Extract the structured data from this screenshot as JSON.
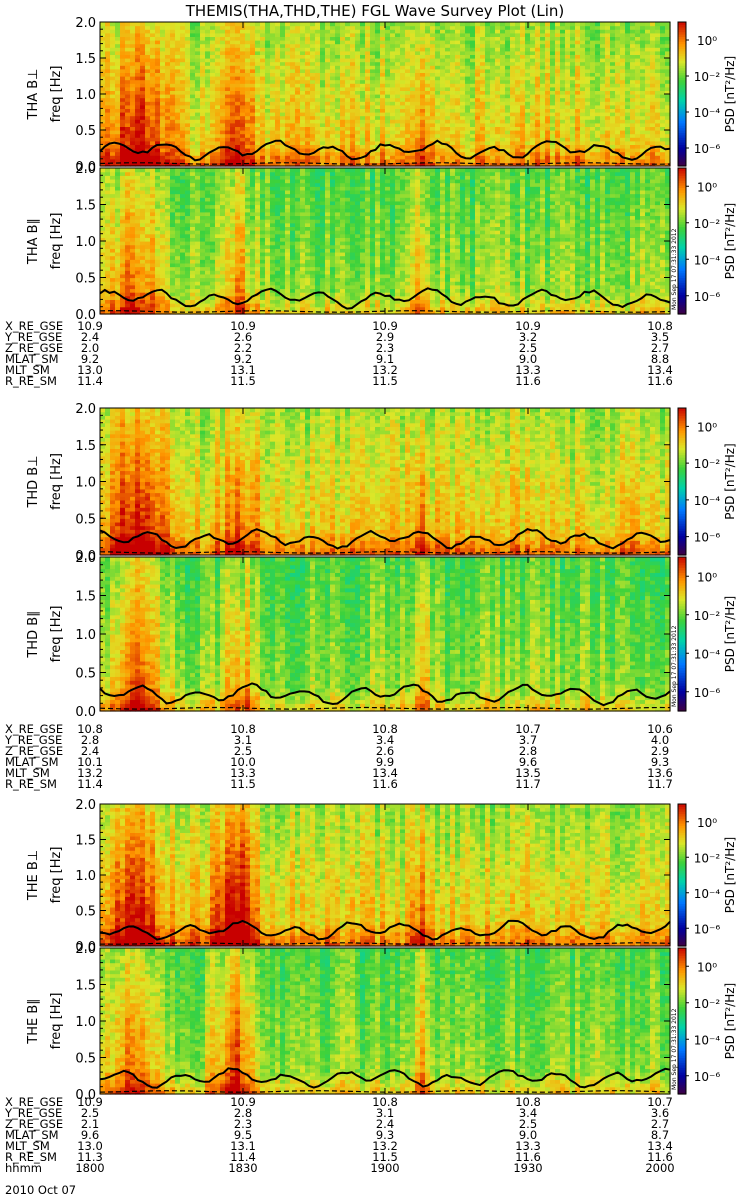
{
  "title": "THEMIS(THA,THD,THE) FGL Wave Survey Plot (Lin)",
  "time_labels": [
    "1800",
    "1830",
    "1900",
    "1930",
    "2000"
  ],
  "time_row_label": "hhmm",
  "date_label": "2010 Oct 07",
  "stamp": "Mon Sep 17 07:31:33 2012",
  "colorbar": {
    "title": "PSD [nT²/Hz]",
    "tick_labels": [
      "10⁰",
      "10⁻²",
      "10⁻⁴",
      "10⁻⁶"
    ],
    "log_values": [
      0,
      -2,
      -4,
      -6
    ],
    "range_log": [
      -7,
      1
    ]
  },
  "freq_axis": {
    "label": "freq [Hz]",
    "ticks": [
      "0.0",
      "0.5",
      "1.0",
      "1.5",
      "2.0"
    ],
    "range": [
      0,
      2.0
    ]
  },
  "spacecraft": [
    {
      "name": "THA",
      "panels": [
        {
          "label": "THA B⊥"
        },
        {
          "label": "THA B∥"
        }
      ],
      "ephemeris": [
        {
          "label": "X_RE_GSE",
          "values": [
            "10.9",
            "10.9",
            "10.9",
            "10.9",
            "10.8"
          ]
        },
        {
          "label": "Y_RE_GSE",
          "values": [
            "2.4",
            "2.6",
            "2.9",
            "3.2",
            "3.5"
          ]
        },
        {
          "label": "Z_RE_GSE",
          "values": [
            "2.0",
            "2.2",
            "2.3",
            "2.5",
            "2.7"
          ]
        },
        {
          "label": "MLAT_SM",
          "values": [
            "9.2",
            "9.2",
            "9.1",
            "9.0",
            "8.8"
          ]
        },
        {
          "label": "MLT_SM",
          "values": [
            "13.0",
            "13.1",
            "13.2",
            "13.3",
            "13.4"
          ]
        },
        {
          "label": "R_RE_SM",
          "values": [
            "11.4",
            "11.5",
            "11.5",
            "11.6",
            "11.6"
          ]
        }
      ]
    },
    {
      "name": "THD",
      "panels": [
        {
          "label": "THD B⊥"
        },
        {
          "label": "THD B∥"
        }
      ],
      "ephemeris": [
        {
          "label": "X_RE_GSE",
          "values": [
            "10.8",
            "10.8",
            "10.8",
            "10.7",
            "10.6"
          ]
        },
        {
          "label": "Y_RE_GSE",
          "values": [
            "2.8",
            "3.1",
            "3.4",
            "3.7",
            "4.0"
          ]
        },
        {
          "label": "Z_RE_GSE",
          "values": [
            "2.4",
            "2.5",
            "2.6",
            "2.8",
            "2.9"
          ]
        },
        {
          "label": "MLAT_SM",
          "values": [
            "10.1",
            "10.0",
            "9.9",
            "9.6",
            "9.3"
          ]
        },
        {
          "label": "MLT_SM",
          "values": [
            "13.2",
            "13.3",
            "13.4",
            "13.5",
            "13.6"
          ]
        },
        {
          "label": "R_RE_SM",
          "values": [
            "11.4",
            "11.5",
            "11.6",
            "11.7",
            "11.7"
          ]
        }
      ]
    },
    {
      "name": "THE",
      "panels": [
        {
          "label": "THE B⊥"
        },
        {
          "label": "THE B∥"
        }
      ],
      "ephemeris": [
        {
          "label": "X_RE_GSE",
          "values": [
            "10.9",
            "10.9",
            "10.8",
            "10.8",
            "10.7"
          ]
        },
        {
          "label": "Y_RE_GSE",
          "values": [
            "2.5",
            "2.8",
            "3.1",
            "3.4",
            "3.6"
          ]
        },
        {
          "label": "Z_RE_GSE",
          "values": [
            "2.1",
            "2.3",
            "2.4",
            "2.5",
            "2.7"
          ]
        },
        {
          "label": "MLAT_SM",
          "values": [
            "9.6",
            "9.5",
            "9.3",
            "9.0",
            "8.7"
          ]
        },
        {
          "label": "MLT_SM",
          "values": [
            "13.0",
            "13.1",
            "13.2",
            "13.3",
            "13.4"
          ]
        },
        {
          "label": "R_RE_SM",
          "values": [
            "11.3",
            "11.4",
            "11.5",
            "11.6",
            "11.6"
          ]
        }
      ]
    }
  ],
  "chart_data": {
    "type": "heatmap",
    "title": "THEMIS(THA,THD,THE) FGL Wave Survey Plot (Lin)",
    "xlabel": "hhmm",
    "x_ticks": [
      "1800",
      "1830",
      "1900",
      "1930",
      "2000"
    ],
    "ylabel": "freq [Hz]",
    "ylim": [
      0,
      2.0
    ],
    "y_ticks": [
      0.0,
      0.5,
      1.0,
      1.5,
      2.0
    ],
    "colorbar_label": "PSD [nT^2/Hz]",
    "colorbar_log_range": [
      -7,
      1
    ],
    "panels": [
      "THA B⊥",
      "THA B∥",
      "THD B⊥",
      "THD B∥",
      "THE B⊥",
      "THE B∥"
    ],
    "overlay_lines": "solid black line near 0.1-0.4 Hz (gyrofrequency); dashed line near 0.02-0.05 Hz",
    "note": "Spectrogram intensity approximated; strongest power (red) at low frequencies around 1800-1830 and near 1905; green/cyan background at higher frequencies."
  }
}
